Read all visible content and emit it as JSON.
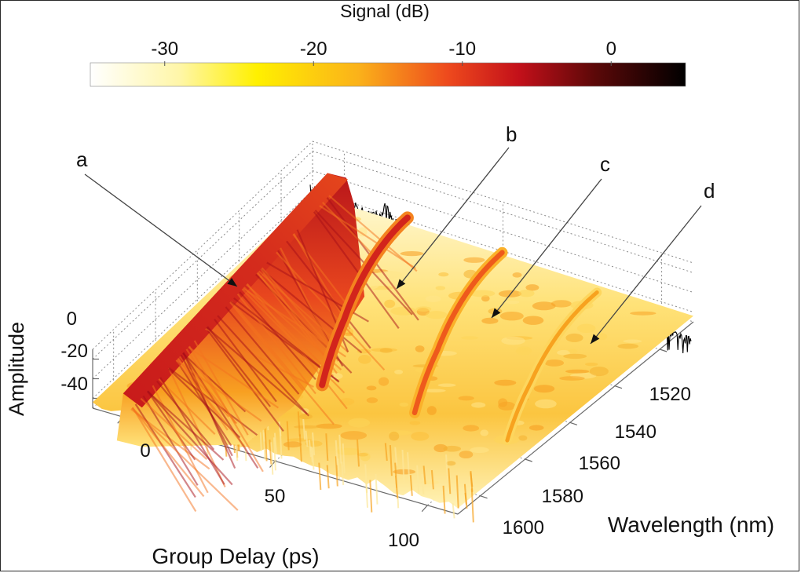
{
  "chart_data": {
    "type": "surface3d",
    "title": "",
    "colorbar": {
      "label": "Signal (dB)",
      "ticks": [
        -30,
        -20,
        -10,
        0
      ],
      "range": [
        -35,
        5
      ],
      "colormap": "hot (reversed: white = low, black = high)"
    },
    "axes": {
      "x": {
        "label": "Group Delay (ps)",
        "ticks": [
          0,
          50,
          100
        ],
        "range": [
          -10,
          110
        ]
      },
      "y": {
        "label": "Wavelength (nm)",
        "ticks": [
          1520,
          1540,
          1560,
          1580,
          1600
        ],
        "range": [
          1505,
          1610
        ]
      },
      "z": {
        "label": "Amplitude",
        "ticks": [
          0,
          -20,
          -40
        ],
        "range": [
          -50,
          10
        ]
      }
    },
    "series": [
      {
        "name": "a",
        "type": "ridge",
        "group_delay_ps": 0,
        "peak_amplitude": 0,
        "extent_nm": [
          1505,
          1610
        ]
      },
      {
        "name": "b",
        "type": "curved-trace",
        "group_delay_ps": 28,
        "peak_amplitude": -5
      },
      {
        "name": "c",
        "type": "curved-trace",
        "group_delay_ps": 58,
        "peak_amplitude": -10
      },
      {
        "name": "d",
        "type": "curved-trace",
        "group_delay_ps": 88,
        "peak_amplitude": -20
      },
      {
        "name": "spectrum",
        "type": "line",
        "plane": "back wall",
        "description": "noisy spectrum, decreasing toward 1600 nm with a spike near 1515 nm"
      }
    ],
    "annotations": [
      "a",
      "b",
      "c",
      "d"
    ],
    "grid": true
  },
  "colors": {
    "colormap_low": "#ffffee",
    "colormap_mid": "#f7a21b",
    "colormap_high": "#000000",
    "text": "#111111",
    "grid": "#8c8c8c"
  }
}
